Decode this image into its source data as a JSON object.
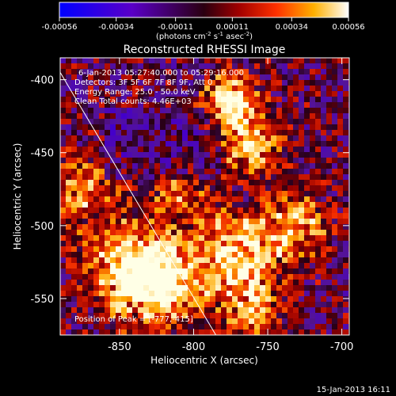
{
  "colorbar": {
    "ticks": [
      "-0.00056",
      "-0.00034",
      "-0.00011",
      "0.00011",
      "0.00034",
      "0.00056"
    ],
    "range": [
      -0.00056,
      0.00056
    ],
    "units": "(photons cm",
    "units_parts": [
      "(photons cm",
      "-2",
      " s",
      "-1",
      " asec",
      "-2",
      ")"
    ]
  },
  "chart_data": {
    "type": "heatmap",
    "title": "Reconstructed RHESSI Image",
    "xlabel": "Heliocentric X (arcsec)",
    "ylabel": "Heliocentric Y (arcsec)",
    "xlim": [
      -890,
      -695
    ],
    "ylim": [
      -575,
      -385
    ],
    "x_ticks": [
      "-850",
      "-800",
      "-750",
      "-700"
    ],
    "y_ticks": [
      "-400",
      "-450",
      "-500",
      "-550"
    ],
    "x_tick_values": [
      -850,
      -800,
      -750,
      -700
    ],
    "y_tick_values": [
      -400,
      -450,
      -500,
      -550
    ],
    "limb_line": {
      "from": [
        -890,
        -395
      ],
      "to": [
        -785,
        -575
      ]
    },
    "annotations": [
      "6-Jan-2013 05:27:40.000 to 05:29:16.000",
      "Detectors: 3F 5F 6F 7F 8F 9F, Att 0",
      "Energy Range: 25.0 - 50.0 keV",
      "Clean     Total counts: 4.46E+03"
    ],
    "peak_label": "Position of Peak = [-777,-415]",
    "peak_position": [
      -777,
      -415
    ]
  },
  "footer": {
    "timestamp": "15-Jan-2013 16:11"
  }
}
